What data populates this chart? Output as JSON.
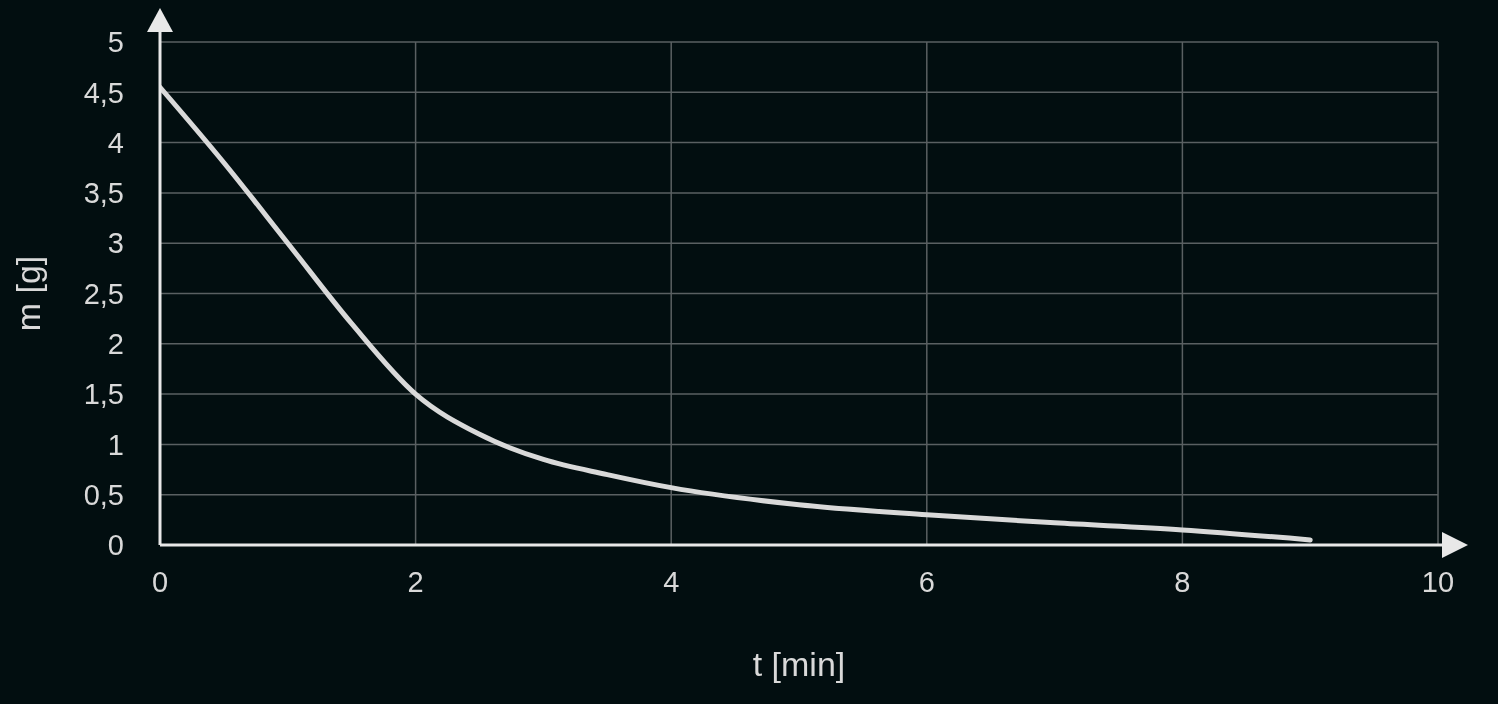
{
  "chart_data": {
    "type": "line",
    "xlabel": "t [min]",
    "ylabel": "m [g]",
    "x": [
      0,
      0.5,
      1,
      1.5,
      2,
      2.5,
      3,
      3.5,
      4,
      5,
      6,
      7,
      8,
      9
    ],
    "series": [
      {
        "color": "#d9d9d9",
        "values": [
          4.55,
          3.8,
          3.0,
          2.2,
          1.5,
          1.1,
          0.85,
          0.7,
          0.57,
          0.4,
          0.3,
          0.22,
          0.15,
          0.05
        ]
      }
    ],
    "xlim": [
      0,
      10
    ],
    "xticks": [
      0,
      2,
      4,
      6,
      8,
      10
    ],
    "ylim": [
      0,
      5
    ],
    "yticks": [
      0,
      {
        "value": 0.5,
        "label": "0,5"
      },
      1,
      {
        "value": 1.5,
        "label": "1,5"
      },
      2,
      {
        "value": 2.5,
        "label": "2,5"
      },
      3,
      {
        "value": 3.5,
        "label": "3,5"
      },
      4,
      {
        "value": 4.5,
        "label": "4,5"
      },
      5
    ],
    "grid": true,
    "legend": false
  }
}
